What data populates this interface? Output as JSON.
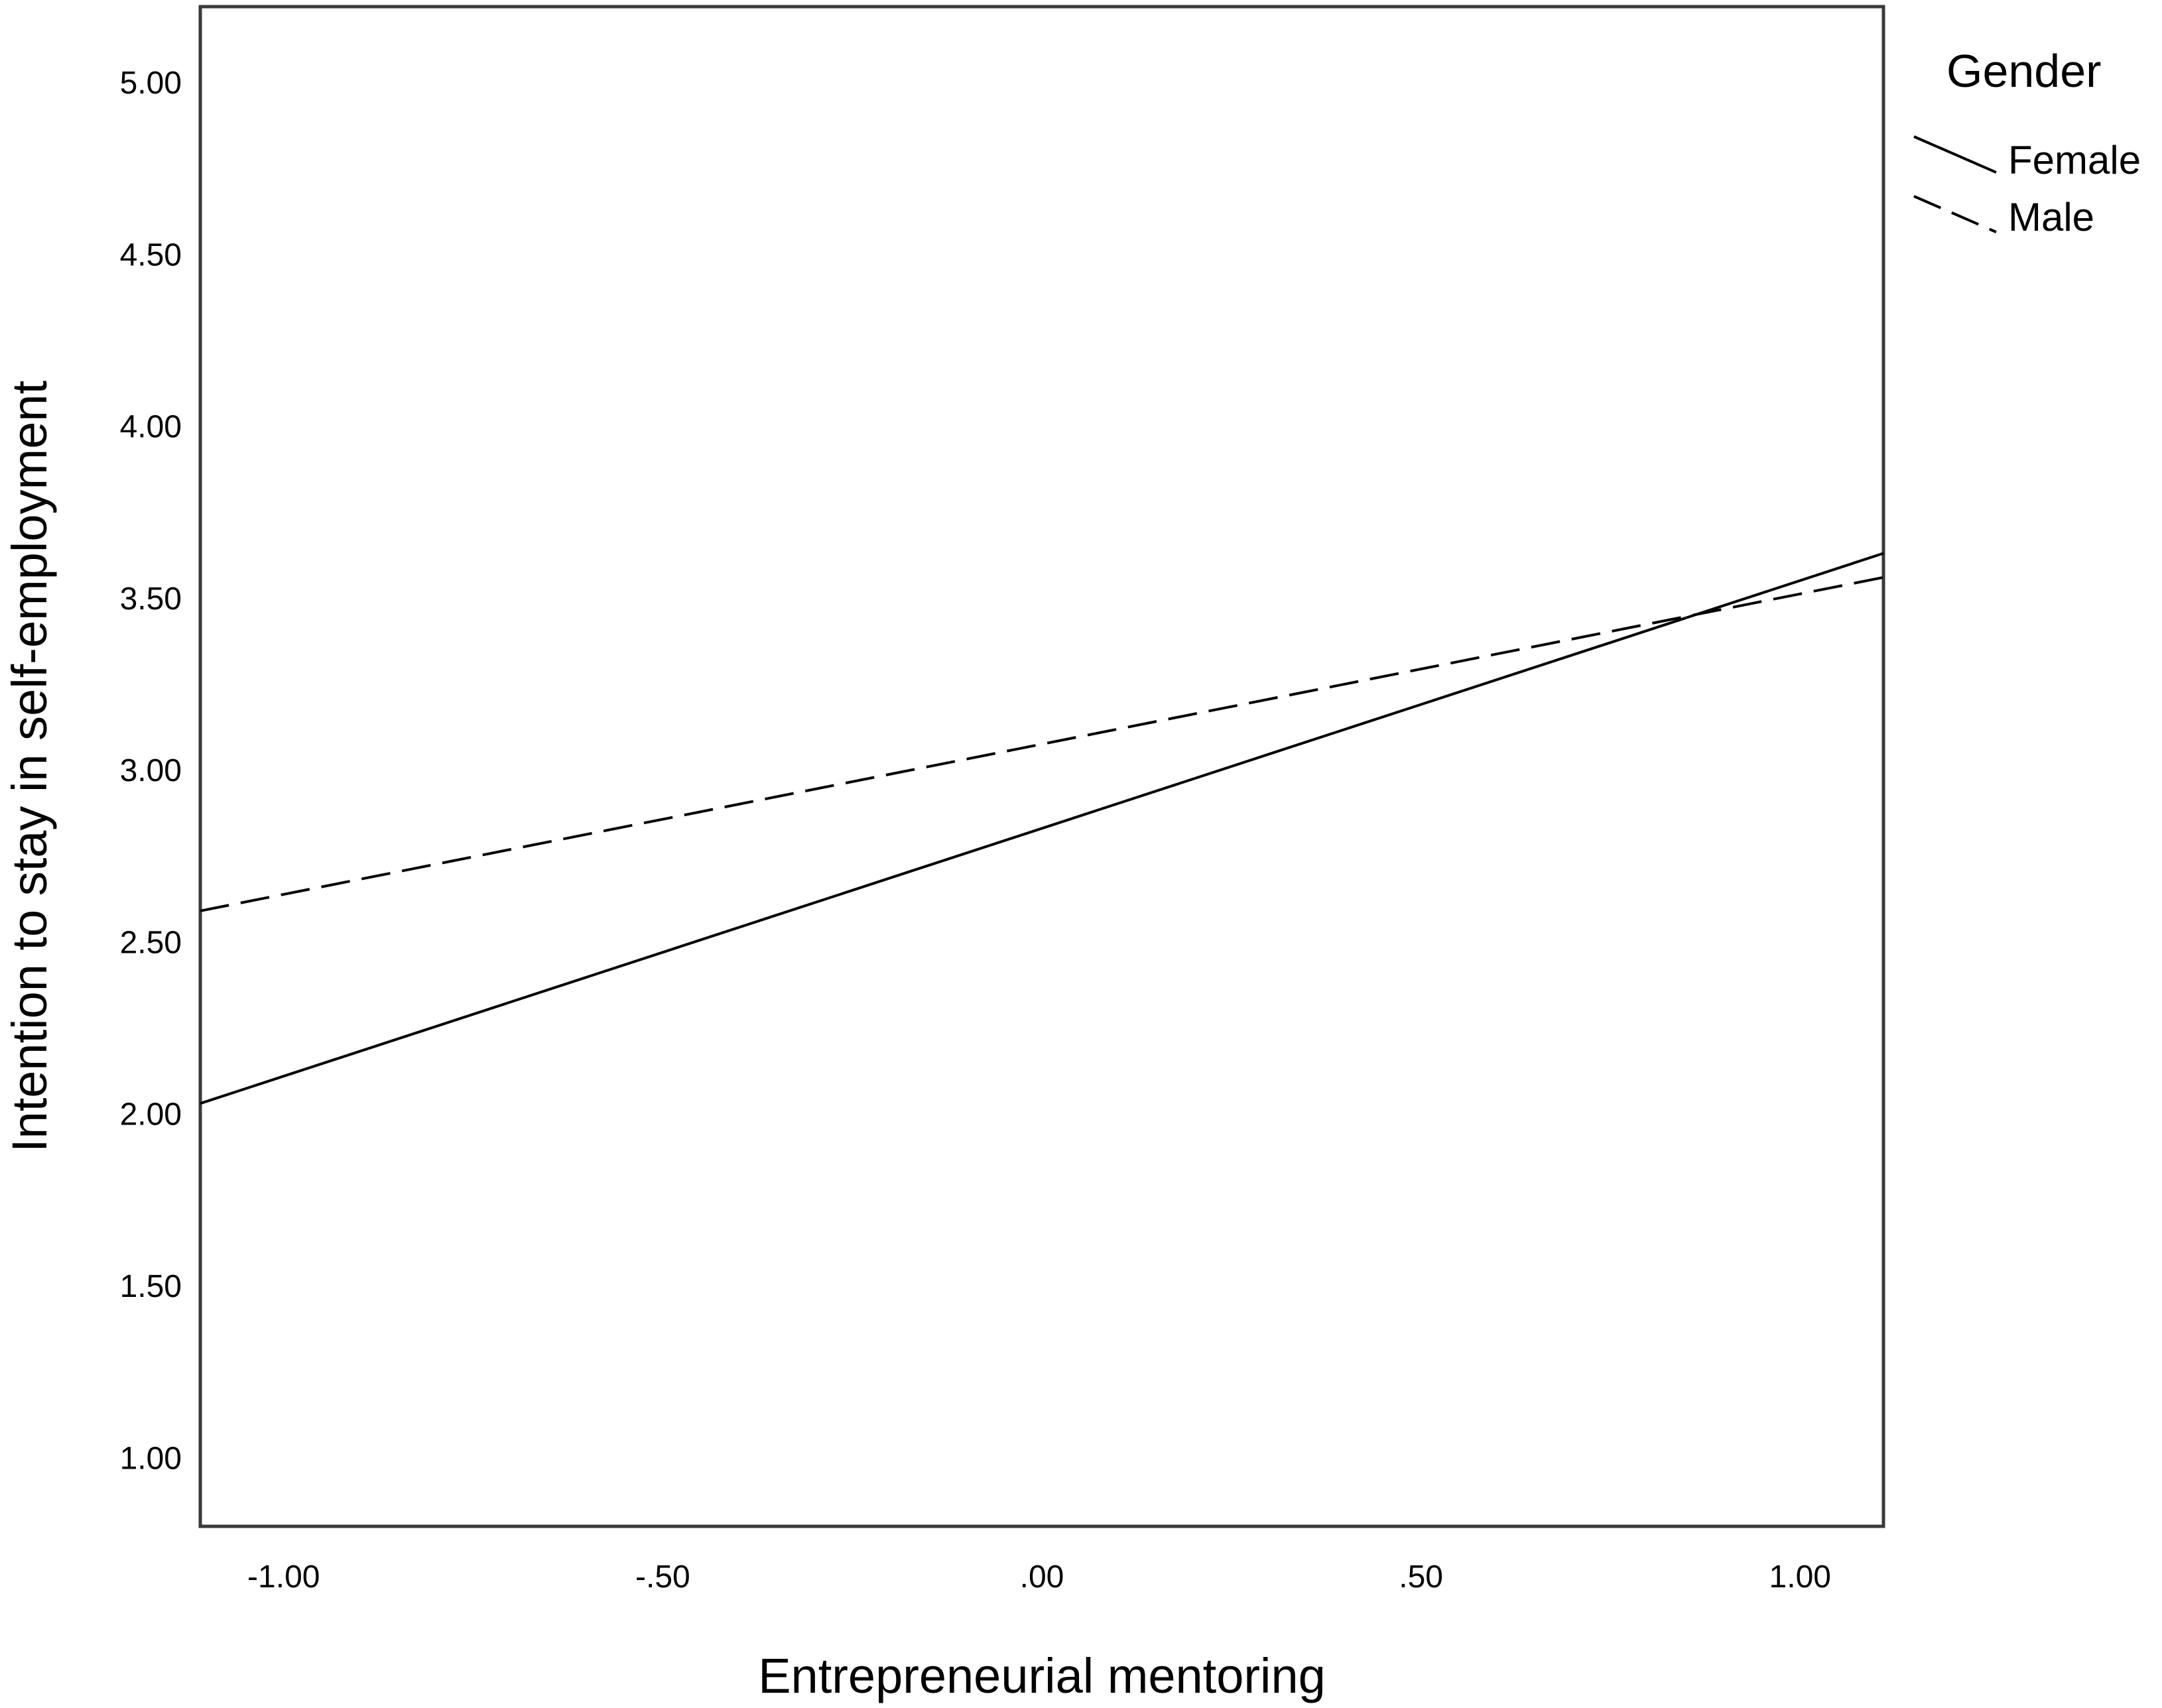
{
  "chart_data": {
    "type": "line",
    "title": "",
    "xlabel": "Entrepreneurial mentoring",
    "ylabel": "Intention to stay in self-employment",
    "xlim": [
      -1.11,
      1.11
    ],
    "ylim": [
      0.8,
      5.22
    ],
    "x_ticks": [
      -1.0,
      -0.5,
      0.0,
      0.5,
      1.0
    ],
    "x_tick_labels": [
      "-1.00",
      "-.50",
      ".00",
      ".50",
      "1.00"
    ],
    "y_ticks": [
      1.0,
      1.5,
      2.0,
      2.5,
      3.0,
      3.5,
      4.0,
      4.5,
      5.0
    ],
    "y_tick_labels": [
      "1.00",
      "1.50",
      "2.00",
      "2.50",
      "3.00",
      "3.50",
      "4.00",
      "4.50",
      "5.00"
    ],
    "grid": false,
    "legend": {
      "title": "Gender",
      "placement": "top-right-outside"
    },
    "series": [
      {
        "name": "Female",
        "style": "solid",
        "color": "#000000",
        "x": [
          -1.11,
          1.11
        ],
        "y": [
          2.03,
          3.63
        ]
      },
      {
        "name": "Male",
        "style": "dashed",
        "color": "#000000",
        "x": [
          -1.11,
          1.11
        ],
        "y": [
          2.59,
          3.56
        ]
      }
    ]
  }
}
